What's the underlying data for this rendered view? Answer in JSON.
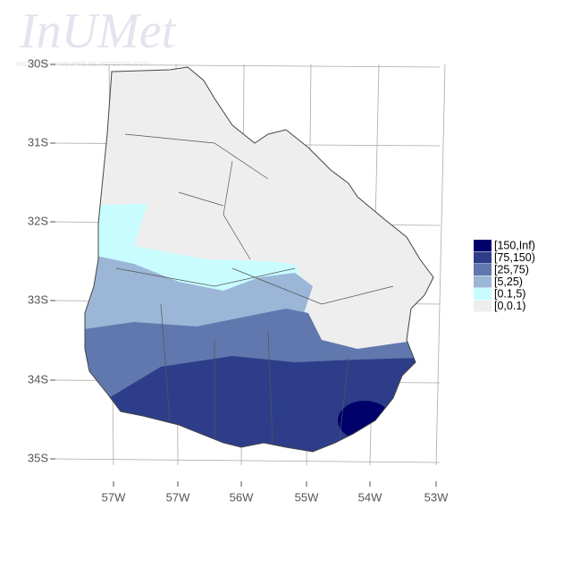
{
  "watermark": {
    "title": "InUMet",
    "subtitle": "INSTITUTO URUGUAYO DE METEOROLOGÍA"
  },
  "map": {
    "lat_labels": [
      "30S",
      "31S",
      "32S",
      "33S",
      "34S",
      "35S"
    ],
    "lon_labels": [
      "57W",
      "57W",
      "56W",
      "55W",
      "54W",
      "53W"
    ],
    "legend": [
      {
        "label": "[150,Inf)",
        "color": "#00006b"
      },
      {
        "label": "[75,150)",
        "color": "#2e3d8a"
      },
      {
        "label": "[25,75)",
        "color": "#6178ae"
      },
      {
        "label": "[5,25)",
        "color": "#9bb6d6"
      },
      {
        "label": "[0.1,5)",
        "color": "#c8fcff"
      },
      {
        "label": "[0,0.1)",
        "color": "#eeeeee"
      }
    ]
  }
}
